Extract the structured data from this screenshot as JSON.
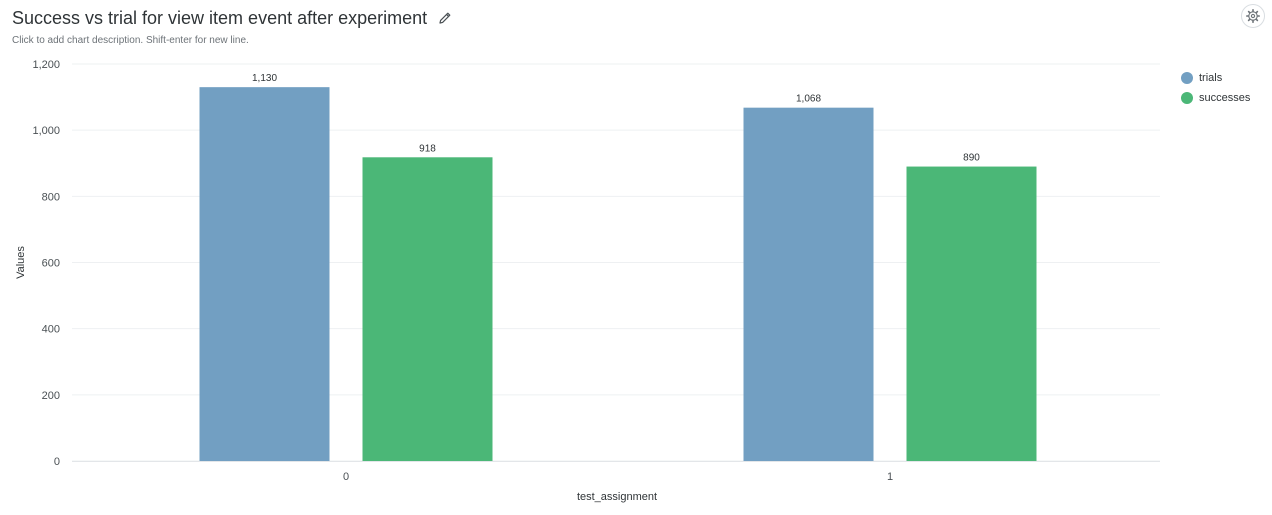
{
  "header": {
    "title": "Success vs trial for view item event after experiment",
    "description": "Click to add chart description. Shift-enter for new line."
  },
  "icons": {
    "edit": "pencil-icon",
    "settings": "gear-icon"
  },
  "chart_data": {
    "type": "bar",
    "categories": [
      "0",
      "1"
    ],
    "series": [
      {
        "name": "trials",
        "values": [
          1130,
          1068
        ],
        "labels": [
          "1,130",
          "1,068"
        ],
        "color": "#729fc2"
      },
      {
        "name": "successes",
        "values": [
          918,
          890
        ],
        "labels": [
          "918",
          "890"
        ],
        "color": "#4bb777"
      }
    ],
    "xlabel": "test_assignment",
    "ylabel": "Values",
    "ylim": [
      0,
      1200
    ],
    "yticks": [
      0,
      200,
      400,
      600,
      800,
      1000,
      1200
    ],
    "ytick_labels": [
      "0",
      "200",
      "400",
      "600",
      "800",
      "1,000",
      "1,200"
    ],
    "grid": true,
    "legend": "top-right"
  }
}
